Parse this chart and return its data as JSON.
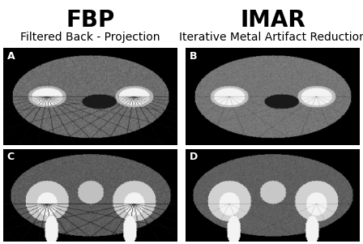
{
  "title_left": "FBP",
  "subtitle_left": "Filtered Back - Projection",
  "title_right": "IMAR",
  "subtitle_right": "Iterative Metal Artifact Reduction",
  "label_A": "A",
  "label_B": "B",
  "label_C": "C",
  "label_D": "D",
  "bg_color": "#ffffff",
  "title_fontsize": 20,
  "subtitle_fontsize": 10,
  "label_fontsize": 9,
  "fig_width": 4.48,
  "fig_height": 3.01,
  "dpi": 100
}
